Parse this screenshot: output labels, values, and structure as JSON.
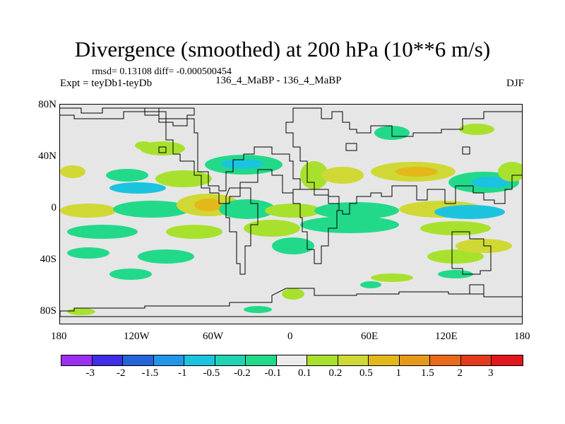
{
  "title": "Divergence (smoothed) at 200 hPa (10**6 m/s)",
  "stats_line": "rmsd= 0.13108 diff= -0.000500454",
  "expt_line": "Expt = teyDb1-teyDb",
  "model_line": "136_4_MaBP - 136_4_MaBP",
  "season": "DJF",
  "lat_ticks": [
    "80N",
    "40N",
    "0",
    "40S",
    "80S"
  ],
  "lon_ticks": [
    "180",
    "120W",
    "60W",
    "0",
    "60E",
    "120E",
    "180"
  ],
  "colorbar": {
    "colors": [
      "#9b30f3",
      "#3f2ee6",
      "#2464d8",
      "#2496ea",
      "#1cc3df",
      "#21d3b0",
      "#22d98a",
      "#ececec",
      "#a8e12d",
      "#d0d836",
      "#e4b81a",
      "#e69a1c",
      "#e86a1a",
      "#e43b1e",
      "#e0181d"
    ],
    "labels": [
      "-3",
      "-2",
      "-1.5",
      "-1",
      "-0.5",
      "-0.2",
      "-0.1",
      "0.1",
      "0.2",
      "0.5",
      "1",
      "1.5",
      "2",
      "3"
    ]
  }
}
